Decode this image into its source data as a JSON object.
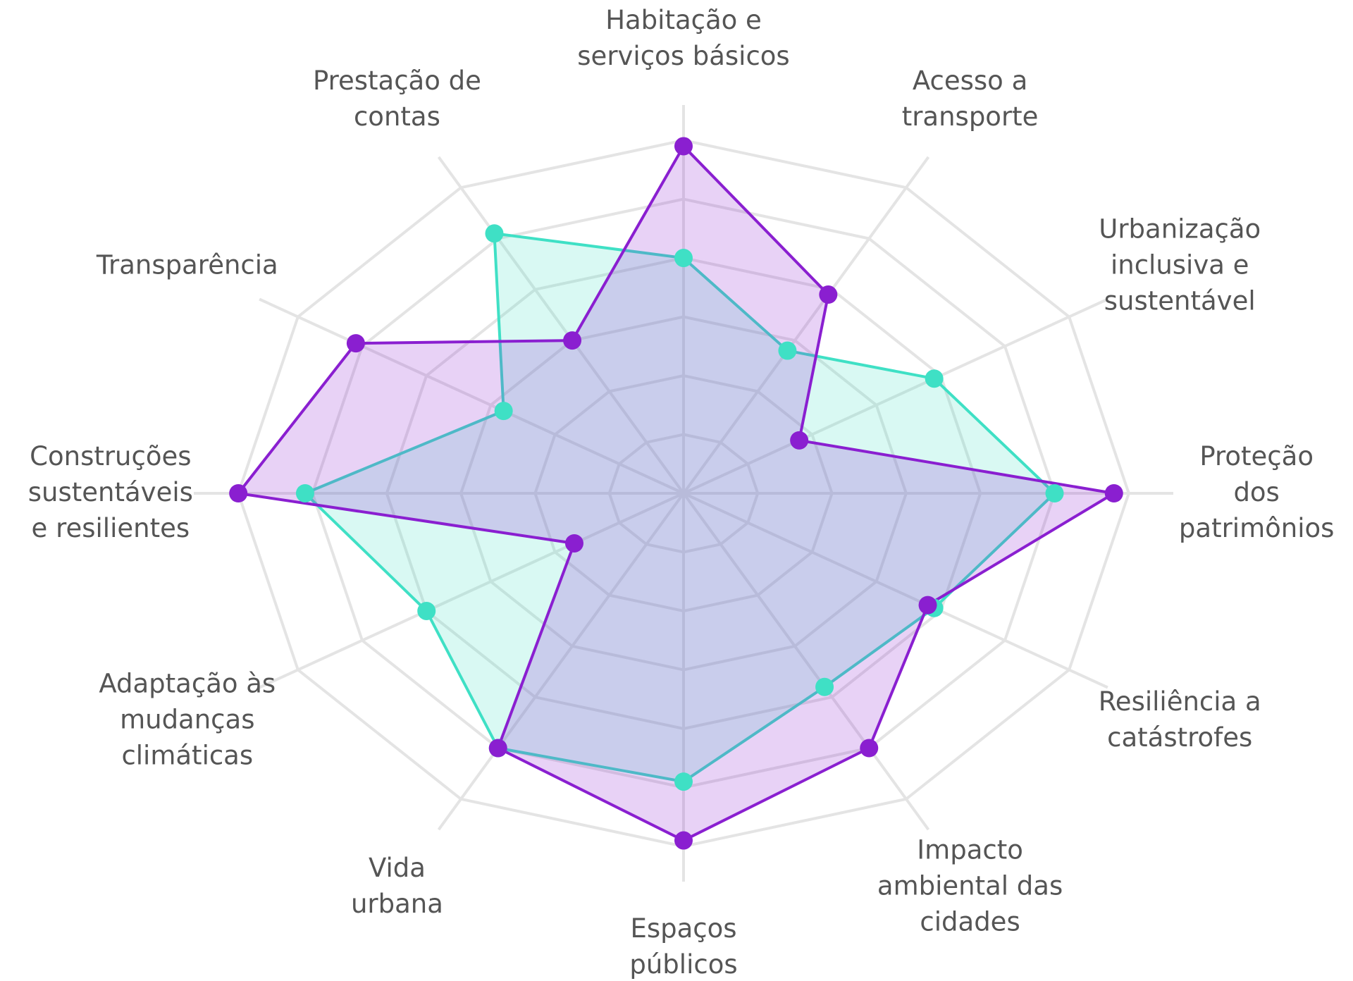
{
  "chart_data": {
    "type": "radar",
    "categories": [
      [
        "Habitação e",
        "serviços básicos"
      ],
      [
        "Acesso a",
        "transporte"
      ],
      [
        "Urbanização",
        "inclusiva e",
        "sustentável"
      ],
      [
        "Proteção",
        "dos",
        "patrimônios"
      ],
      [
        "Resiliência a",
        "catástrofes"
      ],
      [
        "Impacto",
        "ambiental das",
        "cidades"
      ],
      [
        "Espaços",
        "públicos"
      ],
      [
        "Vida",
        "urbana"
      ],
      [
        "Adaptação às",
        "mudanças",
        "climáticas"
      ],
      [
        "Construções",
        "sustentáveis",
        "e resilientes"
      ],
      [
        "Transparência"
      ],
      [
        "Prestação de",
        "contas"
      ]
    ],
    "series": [
      {
        "color": "#3fe0c5",
        "values": [
          4.0,
          2.8,
          3.9,
          5.0,
          3.9,
          3.8,
          4.9,
          5.0,
          4.0,
          5.1,
          2.8,
          5.1
        ]
      },
      {
        "color": "#8a1fd0",
        "values": [
          5.9,
          3.9,
          1.8,
          5.8,
          3.8,
          5.0,
          5.9,
          5.0,
          1.7,
          6.0,
          5.1,
          3.0
        ]
      }
    ],
    "rlim": [
      0,
      6.6
    ],
    "rticks": [
      1,
      2,
      3,
      4,
      5,
      6
    ],
    "grid": true
  }
}
